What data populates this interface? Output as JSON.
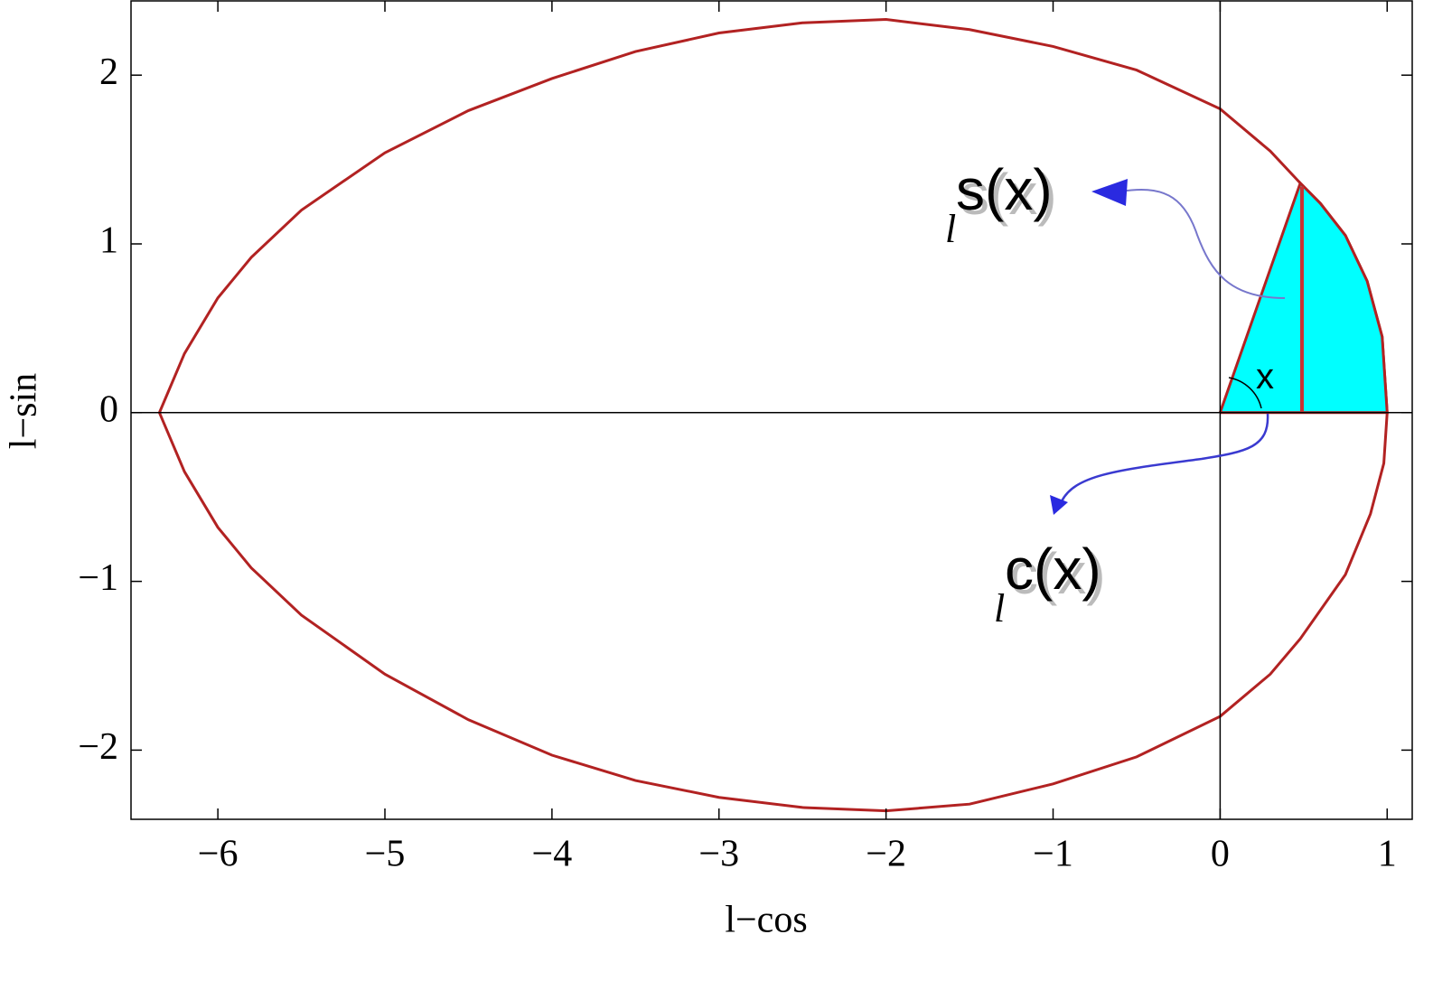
{
  "chart_data": {
    "type": "line",
    "x_label": "l−cos",
    "y_label": "l−sin",
    "xlim": [
      -6.52,
      1.15
    ],
    "ylim": [
      -2.41,
      2.44
    ],
    "xticks": [
      {
        "value": -6,
        "label": "−6"
      },
      {
        "value": -5,
        "label": "−5"
      },
      {
        "value": -4,
        "label": "−4"
      },
      {
        "value": -3,
        "label": "−3"
      },
      {
        "value": -2,
        "label": "−2"
      },
      {
        "value": -1,
        "label": "−1"
      },
      0,
      1
    ],
    "yticks": [
      {
        "value": -2,
        "label": "−2"
      },
      {
        "value": -1,
        "label": "−1"
      },
      0,
      1,
      2
    ],
    "series": [
      {
        "color": "#b22222",
        "fill": "none",
        "x": [
          1,
          0.97,
          0.88,
          0.75,
          0.6,
          0.48,
          0.3,
          0,
          -0.5,
          -1,
          -1.5,
          -2,
          -2.5,
          -3,
          -3.5,
          -4,
          -4.5,
          -5,
          -5.5,
          -5.8,
          -6,
          -6.2,
          -6.35,
          -6.2,
          -6,
          -5.8,
          -5.5,
          -5,
          -4.5,
          -4,
          -3.5,
          -3,
          -2.5,
          -2,
          -1.5,
          -1,
          -0.5,
          0,
          0.3,
          0.48,
          0.75,
          0.9,
          0.98,
          1
        ],
        "values": [
          0,
          0.45,
          0.78,
          1.05,
          1.24,
          1.36,
          1.55,
          1.8,
          2.03,
          2.17,
          2.27,
          2.33,
          2.31,
          2.25,
          2.14,
          1.98,
          1.79,
          1.54,
          1.2,
          0.92,
          0.68,
          0.35,
          0,
          -0.35,
          -0.68,
          -0.92,
          -1.2,
          -1.55,
          -1.82,
          -2.03,
          -2.18,
          -2.28,
          -2.34,
          -2.36,
          -2.32,
          -2.2,
          -2.04,
          -1.8,
          -1.55,
          -1.34,
          -0.96,
          -0.6,
          -0.3,
          0
        ]
      },
      {
        "color": "#b22222",
        "fill": "#00ffff",
        "x": [
          0,
          0.48,
          0.6,
          0.75,
          0.88,
          0.97,
          1,
          0
        ],
        "values": [
          0,
          1.36,
          1.24,
          1.05,
          0.78,
          0.45,
          0,
          0
        ]
      },
      {
        "color": "#c83232",
        "fill": "none",
        "x": [
          0.49,
          0.49
        ],
        "values": [
          0,
          1.34
        ]
      }
    ],
    "annotations": [
      {
        "text": "s(x)",
        "subscript": "l"
      },
      {
        "text": "c(x)",
        "subscript": "l"
      },
      {
        "text": "x"
      }
    ]
  }
}
